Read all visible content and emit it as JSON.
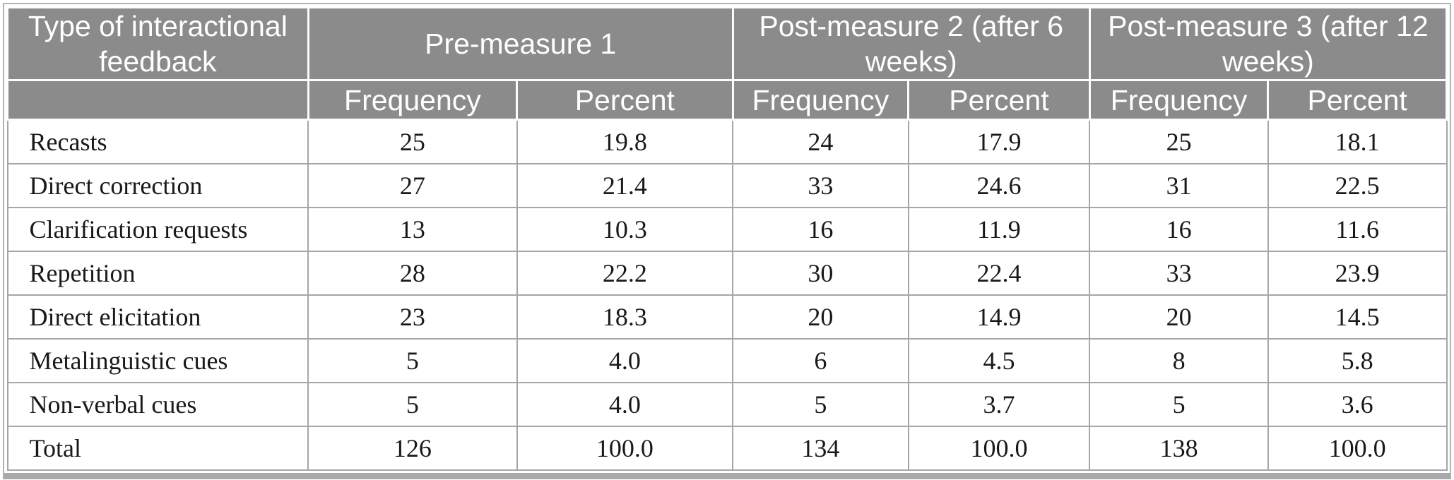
{
  "table": {
    "header": {
      "row_label_column": "Type of interactional feedback",
      "groups": [
        {
          "label": "Pre-measure 1"
        },
        {
          "label": "Post-measure 2 (after 6 weeks)"
        },
        {
          "label": "Post-measure 3 (after 12 weeks)"
        }
      ],
      "subheaders": [
        "Frequency",
        "Percent"
      ]
    },
    "rows": [
      {
        "label": "Recasts",
        "cells": [
          "25",
          "19.8",
          "24",
          "17.9",
          "25",
          "18.1"
        ]
      },
      {
        "label": "Direct correction",
        "cells": [
          "27",
          "21.4",
          "33",
          "24.6",
          "31",
          "22.5"
        ]
      },
      {
        "label": "Clarification requests",
        "cells": [
          "13",
          "10.3",
          "16",
          "11.9",
          "16",
          "11.6"
        ]
      },
      {
        "label": "Repetition",
        "cells": [
          "28",
          "22.2",
          "30",
          "22.4",
          "33",
          "23.9"
        ]
      },
      {
        "label": "Direct elicitation",
        "cells": [
          "23",
          "18.3",
          "20",
          "14.9",
          "20",
          "14.5"
        ]
      },
      {
        "label": "Metalinguistic cues",
        "cells": [
          "5",
          "4.0",
          "6",
          "4.5",
          "8",
          "5.8"
        ]
      },
      {
        "label": "Non-verbal cues",
        "cells": [
          "5",
          "4.0",
          "5",
          "3.7",
          "5",
          "3.6"
        ]
      },
      {
        "label": "Total",
        "cells": [
          "126",
          "100.0",
          "134",
          "100.0",
          "138",
          "100.0"
        ]
      }
    ],
    "colors": {
      "header_bg": "#8b8b8b",
      "header_text": "#ffffff",
      "grid_line": "#a6a6a6",
      "outer_border": "#b3b3b3",
      "bottom_bar": "#a9a9a9",
      "body_text": "#191919"
    }
  }
}
